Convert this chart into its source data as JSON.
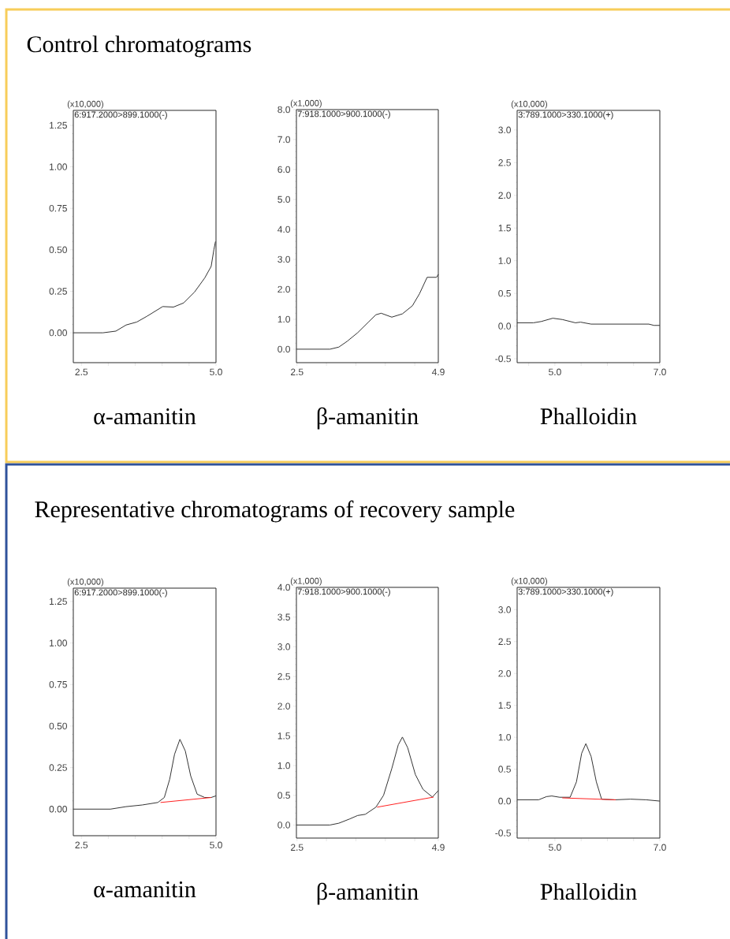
{
  "chart_data": [
    {
      "type": "line",
      "title": "Control chromatograms",
      "xlabel": "α-amanitin",
      "annotations": [
        "(x10,000)",
        "6:917.2000>899.1000(-)"
      ],
      "xlim": [
        2.35,
        5.0
      ],
      "ylim": [
        -0.18,
        1.34
      ],
      "xticks": [
        {
          "value": 2.5,
          "label": "2.5"
        },
        {
          "value": 3.0,
          "label": null
        },
        {
          "value": 3.5,
          "label": null
        },
        {
          "value": 4.0,
          "label": null
        },
        {
          "value": 4.5,
          "label": null
        },
        {
          "value": 5.0,
          "label": "5.0"
        }
      ],
      "yticks": [
        {
          "value": 0,
          "label": "0.00"
        },
        {
          "value": 0.25,
          "label": "0.25"
        },
        {
          "value": 0.5,
          "label": "0.50"
        },
        {
          "value": 0.75,
          "label": "0.75"
        },
        {
          "value": 1.0,
          "label": "1.00"
        },
        {
          "value": 1.25,
          "label": "1.25"
        }
      ],
      "series": [
        {
          "color": "#333333",
          "x": [
            2.35,
            2.9,
            3.14,
            3.33,
            3.53,
            3.72,
            4.01,
            4.21,
            4.4,
            4.6,
            4.79,
            4.91,
            4.96,
            4.99
          ],
          "values": [
            0,
            0,
            0.01,
            0.047,
            0.065,
            0.1,
            0.158,
            0.155,
            0.18,
            0.245,
            0.33,
            0.4,
            0.5,
            0.55
          ]
        }
      ]
    },
    {
      "type": "line",
      "xlabel": "β-amanitin",
      "annotations": [
        "(x1,000)",
        "7:918.1000>900.1000(-)"
      ],
      "xlim": [
        2.49,
        4.9
      ],
      "ylim": [
        -0.45,
        8.0
      ],
      "xticks": [
        {
          "value": 2.5,
          "label": "2.5"
        },
        {
          "value": 3.0,
          "label": null
        },
        {
          "value": 3.5,
          "label": null
        },
        {
          "value": 4.0,
          "label": null
        },
        {
          "value": 4.5,
          "label": null
        },
        {
          "value": 4.9,
          "label": "4.9"
        }
      ],
      "yticks": [
        {
          "value": 0,
          "label": "0.0"
        },
        {
          "value": 1,
          "label": "1.0"
        },
        {
          "value": 2,
          "label": "2.0"
        },
        {
          "value": 3,
          "label": "3.0"
        },
        {
          "value": 4,
          "label": "4.0"
        },
        {
          "value": 5,
          "label": "5.0"
        },
        {
          "value": 6,
          "label": "6.0"
        },
        {
          "value": 7,
          "label": "7.0"
        },
        {
          "value": 8,
          "label": "8.0"
        }
      ],
      "series": [
        {
          "color": "#333333",
          "x": [
            2.49,
            3.06,
            3.21,
            3.35,
            3.53,
            3.71,
            3.84,
            3.93,
            4.11,
            4.29,
            4.46,
            4.58,
            4.71,
            4.87,
            4.9
          ],
          "values": [
            0,
            0,
            0.07,
            0.26,
            0.55,
            0.9,
            1.15,
            1.2,
            1.07,
            1.18,
            1.45,
            1.85,
            2.4,
            2.4,
            2.5
          ]
        }
      ]
    },
    {
      "type": "line",
      "xlabel": "Phalloidin",
      "annotations": [
        "(x10,000)",
        "3:789.1000>330.1000(+)"
      ],
      "xlim": [
        4.28,
        7.0
      ],
      "ylim": [
        -0.56,
        3.3
      ],
      "xticks": [
        {
          "value": 4.5,
          "label": null
        },
        {
          "value": 5.0,
          "label": "5.0"
        },
        {
          "value": 5.5,
          "label": null
        },
        {
          "value": 6.0,
          "label": null
        },
        {
          "value": 6.5,
          "label": null
        },
        {
          "value": 7.0,
          "label": "7.0"
        }
      ],
      "yticks": [
        {
          "value": -0.5,
          "label": "-0.5"
        },
        {
          "value": 0,
          "label": "0.0"
        },
        {
          "value": 0.5,
          "label": "0.5"
        },
        {
          "value": 1.0,
          "label": "1.0"
        },
        {
          "value": 1.5,
          "label": "1.5"
        },
        {
          "value": 2.0,
          "label": "2.0"
        },
        {
          "value": 2.5,
          "label": "2.5"
        },
        {
          "value": 3.0,
          "label": "3.0"
        }
      ],
      "series": [
        {
          "color": "#333333",
          "x": [
            4.28,
            4.59,
            4.74,
            4.96,
            5.14,
            5.39,
            5.49,
            5.69,
            6.44,
            6.79,
            6.89,
            7.0
          ],
          "values": [
            0.05,
            0.05,
            0.07,
            0.12,
            0.1,
            0.05,
            0.06,
            0.03,
            0.03,
            0.03,
            0.01,
            0.01
          ]
        }
      ]
    },
    {
      "type": "line",
      "title": "Representative chromatograms of recovery sample",
      "xlabel": "α-amanitin",
      "annotations": [
        "(x10,000)",
        "6:917.2000>899.1000(-)"
      ],
      "xlim": [
        2.35,
        5.0
      ],
      "ylim": [
        -0.16,
        1.33
      ],
      "xticks": [
        {
          "value": 2.5,
          "label": "2.5"
        },
        {
          "value": 3.0,
          "label": null
        },
        {
          "value": 3.5,
          "label": null
        },
        {
          "value": 4.0,
          "label": null
        },
        {
          "value": 4.5,
          "label": null
        },
        {
          "value": 5.0,
          "label": "5.0"
        }
      ],
      "yticks": [
        {
          "value": 0,
          "label": "0.00"
        },
        {
          "value": 0.25,
          "label": "0.25"
        },
        {
          "value": 0.5,
          "label": "0.50"
        },
        {
          "value": 0.75,
          "label": "0.75"
        },
        {
          "value": 1.0,
          "label": "1.00"
        },
        {
          "value": 1.25,
          "label": "1.25"
        }
      ],
      "series": [
        {
          "color": "#333333",
          "x": [
            2.35,
            3.04,
            3.33,
            3.63,
            3.92,
            4.04,
            4.14,
            4.23,
            4.33,
            4.43,
            4.53,
            4.65,
            4.79,
            4.91,
            5.0
          ],
          "values": [
            0,
            0,
            0.015,
            0.025,
            0.04,
            0.07,
            0.18,
            0.33,
            0.42,
            0.35,
            0.2,
            0.09,
            0.07,
            0.07,
            0.08
          ]
        },
        {
          "color": "#ff2020",
          "x": [
            3.97,
            4.91
          ],
          "values": [
            0.04,
            0.07
          ]
        }
      ]
    },
    {
      "type": "line",
      "xlabel": "β-amanitin",
      "annotations": [
        "(x1,000)",
        "7:918.1000>900.1000(-)"
      ],
      "xlim": [
        2.49,
        4.9
      ],
      "ylim": [
        -0.22,
        4.0
      ],
      "xticks": [
        {
          "value": 2.5,
          "label": "2.5"
        },
        {
          "value": 3.0,
          "label": null
        },
        {
          "value": 3.5,
          "label": null
        },
        {
          "value": 4.0,
          "label": null
        },
        {
          "value": 4.5,
          "label": null
        },
        {
          "value": 4.9,
          "label": "4.9"
        }
      ],
      "yticks": [
        {
          "value": 0,
          "label": "0.0"
        },
        {
          "value": 0.5,
          "label": "0.5"
        },
        {
          "value": 1.0,
          "label": "1.0"
        },
        {
          "value": 1.5,
          "label": "1.5"
        },
        {
          "value": 2.0,
          "label": "2.0"
        },
        {
          "value": 2.5,
          "label": "2.5"
        },
        {
          "value": 3.0,
          "label": "3.0"
        },
        {
          "value": 3.5,
          "label": "3.5"
        },
        {
          "value": 4.0,
          "label": "4.0"
        }
      ],
      "series": [
        {
          "color": "#333333",
          "x": [
            2.49,
            3.06,
            3.21,
            3.39,
            3.53,
            3.66,
            3.84,
            3.97,
            4.11,
            4.22,
            4.29,
            4.38,
            4.51,
            4.64,
            4.8,
            4.9
          ],
          "values": [
            0,
            0,
            0.03,
            0.1,
            0.16,
            0.18,
            0.3,
            0.5,
            0.95,
            1.35,
            1.48,
            1.3,
            0.85,
            0.6,
            0.47,
            0.58
          ]
        },
        {
          "color": "#ff2020",
          "x": [
            3.86,
            4.82
          ],
          "values": [
            0.3,
            0.47
          ]
        }
      ]
    },
    {
      "type": "line",
      "xlabel": "Phalloidin",
      "annotations": [
        "(x10,000)",
        "3:789.1000>330.1000(+)"
      ],
      "xlim": [
        4.28,
        7.0
      ],
      "ylim": [
        -0.58,
        3.35
      ],
      "xticks": [
        {
          "value": 4.5,
          "label": null
        },
        {
          "value": 5.0,
          "label": "5.0"
        },
        {
          "value": 5.5,
          "label": null
        },
        {
          "value": 6.0,
          "label": null
        },
        {
          "value": 6.5,
          "label": null
        },
        {
          "value": 7.0,
          "label": "7.0"
        }
      ],
      "yticks": [
        {
          "value": -0.5,
          "label": "-0.5"
        },
        {
          "value": 0,
          "label": "0.0"
        },
        {
          "value": 0.5,
          "label": "0.5"
        },
        {
          "value": 1.0,
          "label": "1.0"
        },
        {
          "value": 1.5,
          "label": "1.5"
        },
        {
          "value": 2.0,
          "label": "2.0"
        },
        {
          "value": 2.5,
          "label": "2.5"
        },
        {
          "value": 3.0,
          "label": "3.0"
        }
      ],
      "series": [
        {
          "color": "#333333",
          "x": [
            4.28,
            4.69,
            4.84,
            4.94,
            5.09,
            5.29,
            5.41,
            5.51,
            5.59,
            5.69,
            5.79,
            5.89,
            6.14,
            6.44,
            6.74,
            7.0
          ],
          "values": [
            0.02,
            0.02,
            0.07,
            0.08,
            0.06,
            0.06,
            0.3,
            0.75,
            0.9,
            0.7,
            0.3,
            0.03,
            0.02,
            0.03,
            0.02,
            0.0
          ]
        },
        {
          "color": "#ff2020",
          "x": [
            5.14,
            6.16
          ],
          "values": [
            0.05,
            0.02
          ]
        }
      ]
    }
  ]
}
